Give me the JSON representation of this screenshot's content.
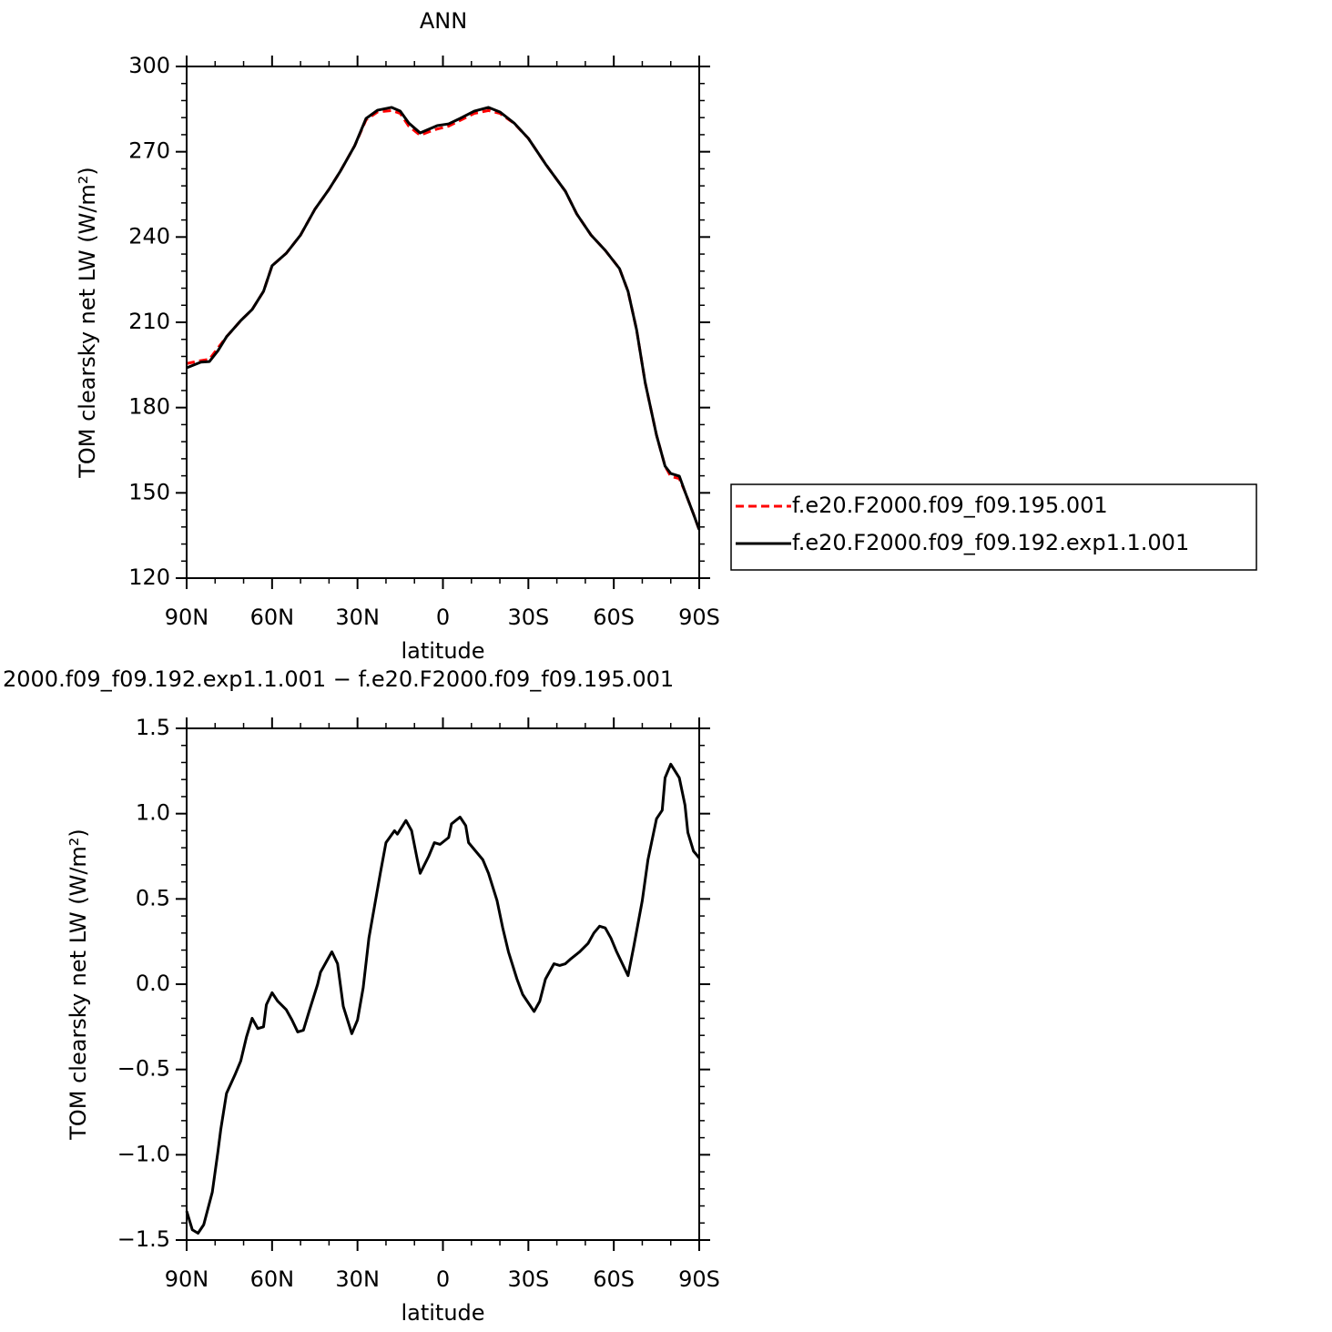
{
  "chart_data": [
    {
      "type": "line",
      "title": "ANN",
      "xlabel": "latitude",
      "ylabel": "TOM clearsky net LW (W/m²)",
      "x": [
        90,
        85,
        82,
        79,
        76,
        71,
        67,
        63,
        60,
        55,
        50,
        45,
        40,
        36,
        31,
        27,
        23,
        18,
        15,
        12,
        8,
        5,
        2,
        -2,
        -6,
        -11,
        -16,
        -20,
        -25,
        -30,
        -36,
        -43,
        -47,
        -52,
        -57,
        -62,
        -65,
        -68,
        -71,
        -75,
        -78,
        -80,
        -83,
        -85,
        -88,
        -90
      ],
      "series": [
        {
          "name": "f.e20.F2000.f09_f09.195.001",
          "color": "#ff0000",
          "style": "dashed",
          "values": [
            195.5,
            196.5,
            197,
            201,
            204.9,
            210.6,
            214.5,
            220.9,
            229.9,
            234.3,
            240.7,
            249.7,
            256.8,
            263.2,
            272.1,
            281.2,
            284,
            284.5,
            283.5,
            279,
            275.8,
            277,
            278,
            279,
            281,
            283.5,
            284.5,
            283.5,
            280,
            274.7,
            265.7,
            256.1,
            248.1,
            240.7,
            235.3,
            228.9,
            220.9,
            207.4,
            188.9,
            170.3,
            159.4,
            155.8,
            155,
            150.4,
            142.5,
            137
          ]
        },
        {
          "name": "f.e20.F2000.f09_f09.192.exp1.1.001",
          "color": "#000000",
          "style": "solid",
          "values": [
            194,
            196,
            196.2,
            200,
            204.9,
            210.6,
            214.5,
            220.9,
            229.9,
            234.3,
            240.7,
            249.7,
            256.8,
            263.2,
            272.1,
            281.7,
            284.6,
            285.6,
            284.3,
            280.1,
            276.6,
            277.9,
            279.2,
            279.8,
            281.7,
            284.3,
            285.6,
            284,
            280.1,
            274.7,
            265.7,
            256.1,
            248.1,
            240.7,
            235.3,
            228.9,
            220.9,
            207.4,
            188.9,
            170.3,
            159.4,
            156.8,
            155.9,
            150.4,
            142.5,
            137
          ]
        }
      ],
      "xlim": [
        90,
        -90
      ],
      "xticks": [
        {
          "value": 90,
          "label": "90N"
        },
        {
          "value": 60,
          "label": "60N"
        },
        {
          "value": 30,
          "label": "30N"
        },
        0,
        {
          "value": -30,
          "label": "30S"
        },
        {
          "value": -60,
          "label": "60S"
        },
        {
          "value": -90,
          "label": "90S"
        }
      ],
      "ylim": [
        120,
        300
      ],
      "yticks": [
        120,
        150,
        180,
        210,
        240,
        270,
        300
      ],
      "legend": "right"
    },
    {
      "type": "line",
      "title": "2000.f09_f09.192.exp1.1.001 − f.e20.F2000.f09_f09.195.001",
      "xlabel": "latitude",
      "ylabel": "TOM clearsky net LW (W/m²)",
      "x": [
        90,
        88,
        86,
        84,
        81,
        79,
        78,
        76,
        73,
        71,
        69,
        67,
        65,
        63,
        62,
        60,
        58,
        55,
        53,
        51,
        49,
        47,
        44,
        43,
        41,
        39,
        37,
        35,
        32,
        30,
        28,
        26,
        24,
        22,
        20,
        17,
        16,
        13,
        11,
        9,
        8,
        5,
        3,
        1,
        -2,
        -3,
        -6,
        -8,
        -9,
        -12,
        -14,
        -16,
        -19,
        -21,
        -23,
        -26,
        -28,
        -30,
        -32,
        -34,
        -36,
        -39,
        -41,
        -43,
        -45,
        -48,
        -51,
        -53,
        -55,
        -57,
        -59,
        -61,
        -63,
        -65,
        -67,
        -70,
        -72,
        -75,
        -77,
        -78,
        -80,
        -83,
        -85,
        -86,
        -88,
        -90
      ],
      "series": [
        {
          "color": "#000000",
          "style": "solid",
          "values": [
            -1.33,
            -1.44,
            -1.46,
            -1.41,
            -1.22,
            -0.98,
            -0.85,
            -0.64,
            -0.53,
            -0.45,
            -0.31,
            -0.2,
            -0.26,
            -0.25,
            -0.12,
            -0.05,
            -0.1,
            -0.15,
            -0.21,
            -0.28,
            -0.27,
            -0.16,
            0,
            0.07,
            0.13,
            0.19,
            0.12,
            -0.13,
            -0.29,
            -0.21,
            -0.02,
            0.27,
            0.46,
            0.65,
            0.83,
            0.9,
            0.88,
            0.96,
            0.9,
            0.73,
            0.65,
            0.75,
            0.83,
            0.82,
            0.86,
            0.94,
            0.98,
            0.93,
            0.83,
            0.77,
            0.73,
            0.65,
            0.49,
            0.33,
            0.19,
            0.03,
            -0.06,
            -0.11,
            -0.16,
            -0.1,
            0.03,
            0.12,
            0.11,
            0.12,
            0.15,
            0.19,
            0.24,
            0.3,
            0.34,
            0.33,
            0.27,
            0.19,
            0.12,
            0.05,
            0.22,
            0.49,
            0.73,
            0.97,
            1.02,
            1.21,
            1.29,
            1.21,
            1.05,
            0.89,
            0.78,
            0.74
          ]
        }
      ],
      "xlim": [
        90,
        -90
      ],
      "xticks": [
        {
          "value": 90,
          "label": "90N"
        },
        {
          "value": 60,
          "label": "60N"
        },
        {
          "value": 30,
          "label": "30N"
        },
        0,
        {
          "value": -30,
          "label": "30S"
        },
        {
          "value": -60,
          "label": "60S"
        },
        {
          "value": -90,
          "label": "90S"
        }
      ],
      "ylim": [
        -1.5,
        1.5
      ],
      "yticks": [
        {
          "value": -1.5,
          "label": "−1.5"
        },
        {
          "value": -1,
          "label": "−1.0"
        },
        {
          "value": -0.5,
          "label": "−0.5"
        },
        {
          "value": 0,
          "label": "0.0"
        },
        0.5,
        {
          "value": 1,
          "label": "1.0"
        },
        1.5
      ]
    }
  ]
}
